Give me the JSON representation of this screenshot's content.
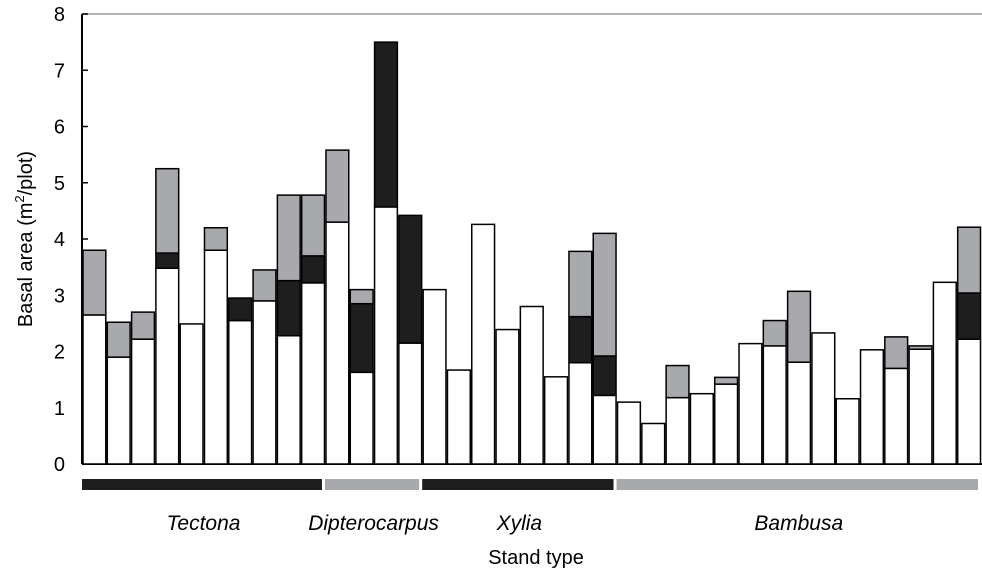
{
  "chart_data": {
    "type": "bar",
    "stacked": true,
    "title": "",
    "xlabel": "Stand type",
    "ylabel": "Basal area (m",
    "ylabel_sup": "2",
    "ylabel_end": "/plot)",
    "ylim": [
      0,
      8
    ],
    "yticks": [
      "0",
      "1",
      "2",
      "3",
      "4",
      "5",
      "6",
      "7",
      "8"
    ],
    "grid": false,
    "segment_colors": [
      "#ffffff",
      "#1e1e1e",
      "#a8a9ad"
    ],
    "bars": [
      [
        2.65,
        0,
        1.15
      ],
      [
        1.9,
        0,
        0.62
      ],
      [
        2.22,
        0,
        0.48
      ],
      [
        3.48,
        0.27,
        1.5
      ],
      [
        2.49,
        0,
        0
      ],
      [
        3.8,
        0,
        0.4
      ],
      [
        2.55,
        0.4,
        0
      ],
      [
        2.9,
        0,
        0.55
      ],
      [
        2.28,
        0.98,
        1.52
      ],
      [
        3.22,
        0.48,
        1.08
      ],
      [
        4.3,
        0,
        1.28
      ],
      [
        1.63,
        1.22,
        0.25
      ],
      [
        4.57,
        2.93,
        0
      ],
      [
        2.15,
        2.27,
        0
      ],
      [
        3.1,
        0,
        0
      ],
      [
        1.67,
        0,
        0
      ],
      [
        4.26,
        0,
        0
      ],
      [
        2.39,
        0,
        0
      ],
      [
        2.8,
        0,
        0
      ],
      [
        1.55,
        0,
        0
      ],
      [
        1.8,
        0.82,
        1.16
      ],
      [
        1.22,
        0.7,
        2.18
      ],
      [
        1.1,
        0,
        0
      ],
      [
        0.72,
        0,
        0
      ],
      [
        1.18,
        0,
        0.57
      ],
      [
        1.25,
        0,
        0
      ],
      [
        1.42,
        0,
        0.12
      ],
      [
        2.14,
        0,
        0
      ],
      [
        2.1,
        0,
        0.45
      ],
      [
        1.81,
        0,
        1.26
      ],
      [
        2.33,
        0,
        0
      ],
      [
        1.16,
        0,
        0
      ],
      [
        2.03,
        0,
        0
      ],
      [
        1.7,
        0,
        0.56
      ],
      [
        2.04,
        0,
        0.06
      ],
      [
        3.23,
        0,
        0
      ],
      [
        2.22,
        0.82,
        1.17
      ]
    ],
    "groups": [
      {
        "name": "Tectona",
        "start": 0,
        "end": 9,
        "color": "#1e1e1e"
      },
      {
        "name": "Dipterocarpus",
        "start": 10,
        "end": 13,
        "color": "#a8a9ad"
      },
      {
        "name": "Xylia",
        "start": 14,
        "end": 21,
        "color": "#1e1e1e"
      },
      {
        "name": "Bambusa",
        "start": 22,
        "end": 36,
        "color": "#a8a9ad"
      }
    ]
  }
}
